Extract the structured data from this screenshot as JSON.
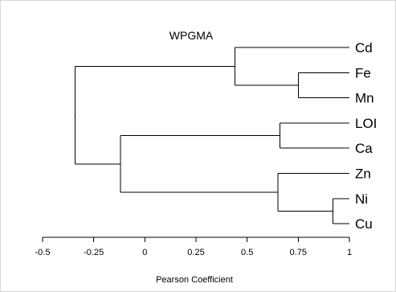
{
  "chart_data": {
    "type": "dendrogram",
    "title": "WPGMA",
    "xlabel": "Pearson Coefficient",
    "xlim": [
      -0.5,
      1
    ],
    "ticks": [
      {
        "value": -0.5,
        "label": "-0.5"
      },
      {
        "value": -0.25,
        "label": "-0.25"
      },
      {
        "value": 0,
        "label": "0"
      },
      {
        "value": 0.25,
        "label": "0.25"
      },
      {
        "value": 0.5,
        "label": "0.5"
      },
      {
        "value": 0.75,
        "label": "0.75"
      },
      {
        "value": 1,
        "label": "1"
      }
    ],
    "leaves": [
      "Cd",
      "Fe",
      "Mn",
      "LOI",
      "Ca",
      "Zn",
      "Ni",
      "Cu"
    ],
    "merges": [
      {
        "id": "fe_mn",
        "children": [
          "Fe",
          "Mn"
        ],
        "height": 0.75
      },
      {
        "id": "cd_femn",
        "children": [
          "Cd",
          "fe_mn"
        ],
        "height": 0.44
      },
      {
        "id": "loi_ca",
        "children": [
          "LOI",
          "Ca"
        ],
        "height": 0.66
      },
      {
        "id": "ni_cu",
        "children": [
          "Ni",
          "Cu"
        ],
        "height": 0.92
      },
      {
        "id": "zn_nicu",
        "children": [
          "Zn",
          "ni_cu"
        ],
        "height": 0.65
      },
      {
        "id": "loica_znnicu",
        "children": [
          "loi_ca",
          "zn_nicu"
        ],
        "height": -0.12
      },
      {
        "id": "root",
        "children": [
          "cd_femn",
          "loica_znnicu"
        ],
        "height": -0.34
      }
    ]
  }
}
